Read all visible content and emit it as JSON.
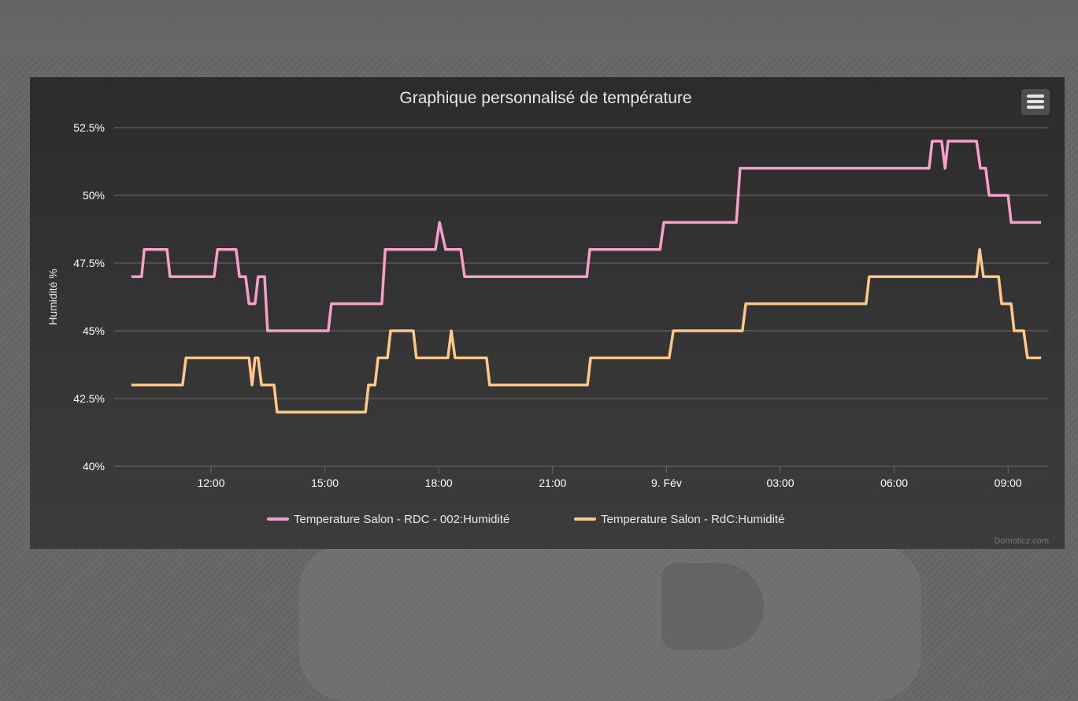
{
  "chart_data": {
    "type": "line",
    "title": "Graphique personnalisé de température",
    "ylabel": "Humidité %",
    "xlabel": "",
    "ylim": [
      40,
      52.5
    ],
    "y_ticks": [
      {
        "v": 40,
        "label": "40%"
      },
      {
        "v": 42.5,
        "label": "42.5%"
      },
      {
        "v": 45,
        "label": "45%"
      },
      {
        "v": 47.5,
        "label": "47.5%"
      },
      {
        "v": 50,
        "label": "50%"
      },
      {
        "v": 52.5,
        "label": "52.5%"
      }
    ],
    "x_unit": "hours since 8 Feb 00:00",
    "x_ticks": [
      {
        "v": 12,
        "label": "12:00"
      },
      {
        "v": 15,
        "label": "15:00"
      },
      {
        "v": 18,
        "label": "18:00"
      },
      {
        "v": 21,
        "label": "21:00"
      },
      {
        "v": 24,
        "label": "9. Fév"
      },
      {
        "v": 27,
        "label": "03:00"
      },
      {
        "v": 30,
        "label": "06:00"
      },
      {
        "v": 33,
        "label": "09:00"
      }
    ],
    "grid": true,
    "legend_position": "bottom",
    "series": [
      {
        "name": "Temperature Salon - RDC - 002:Humidité",
        "color": "#f79fcb",
        "points": [
          [
            9.9,
            47
          ],
          [
            10.17,
            47
          ],
          [
            10.24,
            48
          ],
          [
            10.84,
            48
          ],
          [
            10.92,
            47
          ],
          [
            12.08,
            47
          ],
          [
            12.17,
            48
          ],
          [
            12.66,
            48
          ],
          [
            12.75,
            47
          ],
          [
            12.91,
            47
          ],
          [
            13.0,
            46
          ],
          [
            13.16,
            46
          ],
          [
            13.24,
            47
          ],
          [
            13.41,
            47
          ],
          [
            13.49,
            45
          ],
          [
            15.09,
            45
          ],
          [
            15.17,
            46
          ],
          [
            16.5,
            46
          ],
          [
            16.59,
            48
          ],
          [
            17.91,
            48
          ],
          [
            18.02,
            49
          ],
          [
            18.18,
            48
          ],
          [
            18.58,
            48
          ],
          [
            18.68,
            47
          ],
          [
            21.9,
            47
          ],
          [
            21.98,
            48
          ],
          [
            23.83,
            48
          ],
          [
            23.93,
            49
          ],
          [
            25.84,
            49
          ],
          [
            25.94,
            51
          ],
          [
            30.92,
            51
          ],
          [
            31.0,
            52
          ],
          [
            31.25,
            52
          ],
          [
            31.34,
            51
          ],
          [
            31.42,
            52
          ],
          [
            32.17,
            52
          ],
          [
            32.27,
            51
          ],
          [
            32.41,
            51
          ],
          [
            32.5,
            50
          ],
          [
            33.0,
            50
          ],
          [
            33.08,
            49
          ],
          [
            33.87,
            49
          ]
        ]
      },
      {
        "name": "Temperature Salon - RdC:Humidité",
        "color": "#ffc78a",
        "points": [
          [
            9.9,
            43
          ],
          [
            11.25,
            43
          ],
          [
            11.34,
            44
          ],
          [
            13.0,
            44
          ],
          [
            13.08,
            43
          ],
          [
            13.16,
            44
          ],
          [
            13.24,
            44
          ],
          [
            13.33,
            43
          ],
          [
            13.66,
            43
          ],
          [
            13.74,
            42
          ],
          [
            16.07,
            42
          ],
          [
            16.15,
            43
          ],
          [
            16.32,
            43
          ],
          [
            16.4,
            44
          ],
          [
            16.65,
            44
          ],
          [
            16.73,
            45
          ],
          [
            17.33,
            45
          ],
          [
            17.41,
            44
          ],
          [
            18.24,
            44
          ],
          [
            18.33,
            45
          ],
          [
            18.43,
            44
          ],
          [
            19.26,
            44
          ],
          [
            19.34,
            43
          ],
          [
            21.92,
            43
          ],
          [
            22.0,
            44
          ],
          [
            24.07,
            44
          ],
          [
            24.18,
            45
          ],
          [
            26.0,
            45
          ],
          [
            26.09,
            46
          ],
          [
            29.26,
            46
          ],
          [
            29.34,
            47
          ],
          [
            32.17,
            47
          ],
          [
            32.25,
            48
          ],
          [
            32.35,
            47
          ],
          [
            32.75,
            47
          ],
          [
            32.83,
            46
          ],
          [
            33.08,
            46
          ],
          [
            33.16,
            45
          ],
          [
            33.41,
            45
          ],
          [
            33.51,
            44
          ],
          [
            33.87,
            44
          ]
        ]
      }
    ],
    "credits": "Domoticz.com"
  }
}
